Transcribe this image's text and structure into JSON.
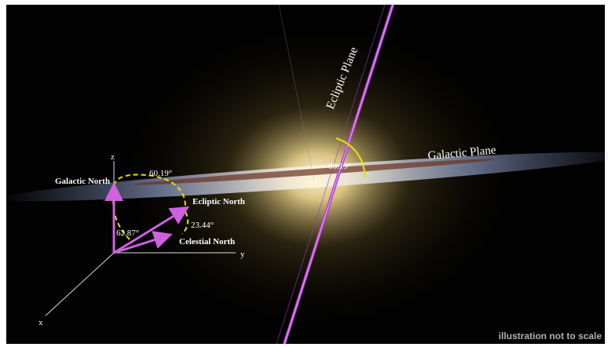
{
  "image": {
    "planes": {
      "ecliptic": "Ecliptic Plane",
      "galactic": "Galactic Plane",
      "angle": "60.19°"
    },
    "axes": {
      "z": "z",
      "y": "y",
      "x": "x"
    },
    "vectors": {
      "galactic_north": "Galactic North",
      "ecliptic_north": "Ecliptic North",
      "celestial_north": "Celestial North"
    },
    "angles": {
      "galactic_ecliptic": "60.19°",
      "ecliptic_celestial": "23.44°",
      "galactic_celestial": "62.87°"
    },
    "note": "illustration not to scale"
  }
}
